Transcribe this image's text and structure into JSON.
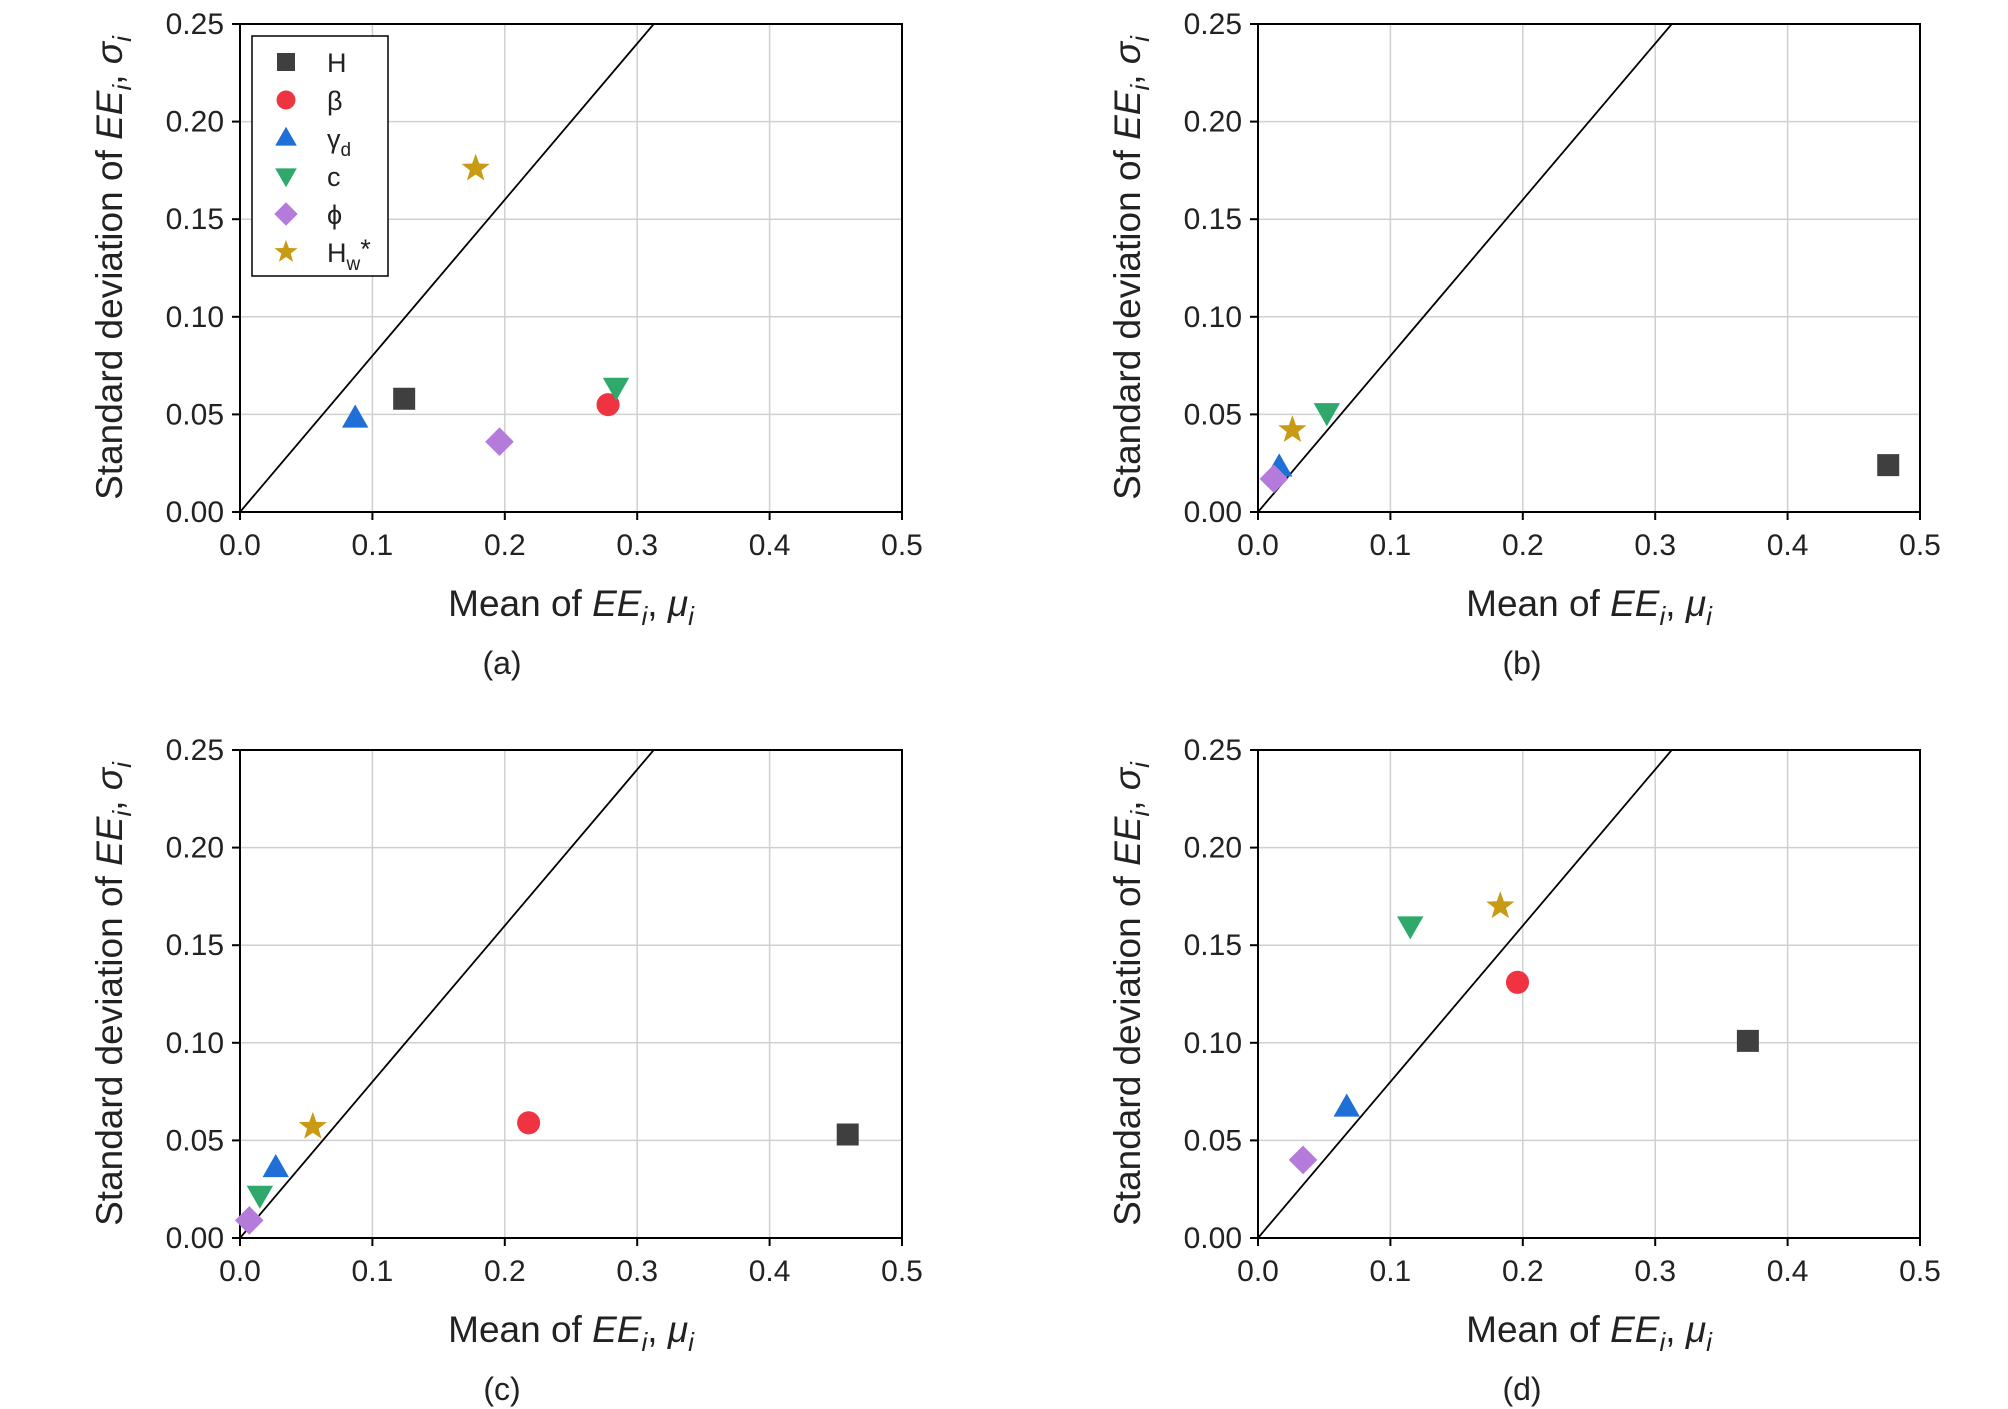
{
  "chart_data": [
    {
      "type": "scatter",
      "panel_label": "(a)",
      "xlabel": {
        "prefix": "Mean of ",
        "ee": "EE",
        "sub": "i",
        "sep": ", ",
        "sym": "μ",
        "symsub": "i"
      },
      "ylabel": {
        "prefix": "Standard deviation of ",
        "ee": "EE",
        "sub": "i",
        "sep": ", ",
        "sym": "σ",
        "symsub": "i"
      },
      "xlim": [
        0,
        0.5
      ],
      "ylim": [
        0,
        0.25
      ],
      "xticks": [
        "0.0",
        "0.1",
        "0.2",
        "0.3",
        "0.4",
        "0.5"
      ],
      "yticks": [
        "0.00",
        "0.05",
        "0.10",
        "0.15",
        "0.20",
        "0.25"
      ],
      "grid": true,
      "reference_line": {
        "slope": 0.8
      },
      "legend": {
        "placement": "top-left"
      },
      "series": [
        {
          "name": "H",
          "marker": "square",
          "color": "#3f3f3f",
          "x": 0.124,
          "y": 0.058
        },
        {
          "name": "β",
          "marker": "circle",
          "color": "#ef3340",
          "x": 0.278,
          "y": 0.055
        },
        {
          "name": "γ",
          "name_sub": "d",
          "marker": "triangle-up",
          "color": "#1f6fd6",
          "x": 0.087,
          "y": 0.048
        },
        {
          "name": "c",
          "marker": "triangle-down",
          "color": "#2ea96b",
          "x": 0.284,
          "y": 0.064
        },
        {
          "name": "ϕ",
          "marker": "diamond",
          "color": "#b57bdb",
          "x": 0.196,
          "y": 0.036
        },
        {
          "name": "H",
          "name_sub": "w",
          "name_suffix": "*",
          "marker": "star",
          "color": "#c99a14",
          "x": 0.178,
          "y": 0.176
        }
      ]
    },
    {
      "type": "scatter",
      "panel_label": "(b)",
      "xlabel": {
        "prefix": "Mean of ",
        "ee": "EE",
        "sub": "i",
        "sep": ", ",
        "sym": "μ",
        "symsub": "i"
      },
      "ylabel": {
        "prefix": "Standard deviation of ",
        "ee": "EE",
        "sub": "i",
        "sep": ", ",
        "sym": "σ",
        "symsub": "i"
      },
      "xlim": [
        0,
        0.5
      ],
      "ylim": [
        0,
        0.25
      ],
      "xticks": [
        "0.0",
        "0.1",
        "0.2",
        "0.3",
        "0.4",
        "0.5"
      ],
      "yticks": [
        "0.00",
        "0.05",
        "0.10",
        "0.15",
        "0.20",
        "0.25"
      ],
      "grid": true,
      "reference_line": {
        "slope": 0.8
      },
      "series": [
        {
          "name": "H",
          "marker": "square",
          "color": "#3f3f3f",
          "x": 0.476,
          "y": 0.024
        },
        {
          "name": "γ",
          "name_sub": "d",
          "marker": "triangle-up",
          "color": "#1f6fd6",
          "x": 0.016,
          "y": 0.023
        },
        {
          "name": "c",
          "marker": "triangle-down",
          "color": "#2ea96b",
          "x": 0.052,
          "y": 0.051
        },
        {
          "name": "ϕ",
          "marker": "diamond",
          "color": "#b57bdb",
          "x": 0.012,
          "y": 0.017
        },
        {
          "name": "H",
          "name_sub": "w",
          "name_suffix": "*",
          "marker": "star",
          "color": "#c99a14",
          "x": 0.026,
          "y": 0.042
        }
      ]
    },
    {
      "type": "scatter",
      "panel_label": "(c)",
      "xlabel": {
        "prefix": "Mean of ",
        "ee": "EE",
        "sub": "i",
        "sep": ", ",
        "sym": "μ",
        "symsub": "i"
      },
      "ylabel": {
        "prefix": "Standard deviation of ",
        "ee": "EE",
        "sub": "i",
        "sep": ", ",
        "sym": "σ",
        "symsub": "i"
      },
      "xlim": [
        0,
        0.5
      ],
      "ylim": [
        0,
        0.25
      ],
      "xticks": [
        "0.0",
        "0.1",
        "0.2",
        "0.3",
        "0.4",
        "0.5"
      ],
      "yticks": [
        "0.00",
        "0.05",
        "0.10",
        "0.15",
        "0.20",
        "0.25"
      ],
      "grid": true,
      "reference_line": {
        "slope": 0.8
      },
      "series": [
        {
          "name": "H",
          "marker": "square",
          "color": "#3f3f3f",
          "x": 0.459,
          "y": 0.053
        },
        {
          "name": "β",
          "marker": "circle",
          "color": "#ef3340",
          "x": 0.218,
          "y": 0.059
        },
        {
          "name": "γ",
          "name_sub": "d",
          "marker": "triangle-up",
          "color": "#1f6fd6",
          "x": 0.027,
          "y": 0.036
        },
        {
          "name": "c",
          "marker": "triangle-down",
          "color": "#2ea96b",
          "x": 0.015,
          "y": 0.022
        },
        {
          "name": "ϕ",
          "marker": "diamond",
          "color": "#b57bdb",
          "x": 0.007,
          "y": 0.009
        },
        {
          "name": "H",
          "name_sub": "w",
          "name_suffix": "*",
          "marker": "star",
          "color": "#c99a14",
          "x": 0.055,
          "y": 0.057
        }
      ]
    },
    {
      "type": "scatter",
      "panel_label": "(d)",
      "xlabel": {
        "prefix": "Mean of ",
        "ee": "EE",
        "sub": "i",
        "sep": ", ",
        "sym": "μ",
        "symsub": "i"
      },
      "ylabel": {
        "prefix": "Standard deviation of ",
        "ee": "EE",
        "sub": "i",
        "sep": ", ",
        "sym": "σ",
        "symsub": "i"
      },
      "xlim": [
        0,
        0.5
      ],
      "ylim": [
        0,
        0.25
      ],
      "xticks": [
        "0.0",
        "0.1",
        "0.2",
        "0.3",
        "0.4",
        "0.5"
      ],
      "yticks": [
        "0.00",
        "0.05",
        "0.10",
        "0.15",
        "0.20",
        "0.25"
      ],
      "grid": true,
      "reference_line": {
        "slope": 0.8
      },
      "series": [
        {
          "name": "H",
          "marker": "square",
          "color": "#3f3f3f",
          "x": 0.37,
          "y": 0.101
        },
        {
          "name": "β",
          "marker": "circle",
          "color": "#ef3340",
          "x": 0.196,
          "y": 0.131
        },
        {
          "name": "γ",
          "name_sub": "d",
          "marker": "triangle-up",
          "color": "#1f6fd6",
          "x": 0.067,
          "y": 0.067
        },
        {
          "name": "c",
          "marker": "triangle-down",
          "color": "#2ea96b",
          "x": 0.115,
          "y": 0.16
        },
        {
          "name": "ϕ",
          "marker": "diamond",
          "color": "#b57bdb",
          "x": 0.034,
          "y": 0.04
        },
        {
          "name": "H",
          "name_sub": "w",
          "name_suffix": "*",
          "marker": "star",
          "color": "#c99a14",
          "x": 0.183,
          "y": 0.17
        }
      ]
    }
  ]
}
